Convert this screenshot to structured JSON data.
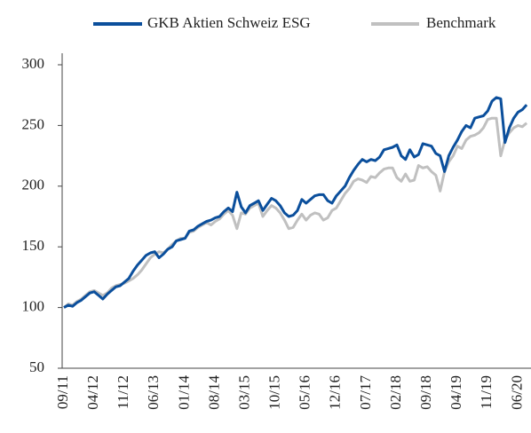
{
  "chart_data": {
    "type": "line",
    "categories": [
      "09/11",
      null,
      null,
      null,
      null,
      null,
      null,
      "04/12",
      null,
      null,
      null,
      null,
      null,
      null,
      "11/12",
      null,
      null,
      null,
      null,
      null,
      null,
      "06/13",
      null,
      null,
      null,
      null,
      null,
      null,
      "01/14",
      null,
      null,
      null,
      null,
      null,
      null,
      "08/14",
      null,
      null,
      null,
      null,
      null,
      null,
      "03/15",
      null,
      null,
      null,
      null,
      null,
      null,
      "10/15",
      null,
      null,
      null,
      null,
      null,
      null,
      "05/16",
      null,
      null,
      null,
      null,
      null,
      null,
      "12/16",
      null,
      null,
      null,
      null,
      null,
      null,
      "07/17",
      null,
      null,
      null,
      null,
      null,
      null,
      "02/18",
      null,
      null,
      null,
      null,
      null,
      null,
      "09/18",
      null,
      null,
      null,
      null,
      null,
      null,
      "04/19",
      null,
      null,
      null,
      null,
      null,
      null,
      "11/19",
      null,
      null,
      null,
      null,
      null,
      null,
      "06/20",
      null,
      null
    ],
    "series": [
      {
        "name": "GKB Aktien Schweiz ESG",
        "color": "#0b4f9c",
        "values": [
          100,
          102,
          101,
          104,
          106,
          109,
          112,
          113,
          110,
          107,
          111,
          114,
          117,
          118,
          121,
          124,
          130,
          135,
          139,
          143,
          145,
          146,
          141,
          144,
          148,
          150,
          155,
          156,
          157,
          163,
          164,
          167,
          169,
          171,
          172,
          174,
          175,
          179,
          182,
          179,
          195,
          183,
          178,
          184,
          186,
          188,
          180,
          185,
          190,
          188,
          184,
          178,
          175,
          176,
          180,
          189,
          186,
          189,
          192,
          193,
          193,
          188,
          186,
          192,
          196,
          200,
          207,
          213,
          218,
          222,
          220,
          222,
          221,
          224,
          230,
          231,
          232,
          234,
          225,
          222,
          230,
          224,
          226,
          235,
          234,
          233,
          227,
          225,
          212,
          225,
          232,
          238,
          245,
          250,
          248,
          256,
          257,
          258,
          262,
          270,
          273,
          272,
          236,
          248,
          256,
          261,
          263,
          267
        ]
      },
      {
        "name": "Benchmark",
        "color": "#c0c0c0",
        "values": [
          100,
          103,
          102,
          105,
          107,
          110,
          113,
          114,
          112,
          110,
          112,
          116,
          118,
          119,
          120,
          122,
          124,
          127,
          131,
          136,
          141,
          144,
          146,
          145,
          148,
          152,
          155,
          157,
          157,
          162,
          163,
          166,
          168,
          170,
          168,
          171,
          173,
          177,
          180,
          176,
          165,
          178,
          177,
          182,
          184,
          186,
          175,
          180,
          184,
          182,
          178,
          172,
          165,
          166,
          172,
          177,
          172,
          176,
          178,
          177,
          172,
          174,
          180,
          182,
          188,
          194,
          198,
          204,
          206,
          205,
          203,
          208,
          207,
          211,
          214,
          215,
          215,
          207,
          204,
          210,
          204,
          205,
          217,
          215,
          216,
          212,
          209,
          196,
          212,
          220,
          225,
          233,
          231,
          238,
          241,
          242,
          244,
          248,
          255,
          256,
          256,
          225,
          238,
          244,
          248,
          250,
          249,
          252
        ]
      }
    ],
    "ylim": [
      50,
      300
    ],
    "yticks": [
      50,
      100,
      150,
      200,
      250,
      300
    ],
    "grid": false
  }
}
